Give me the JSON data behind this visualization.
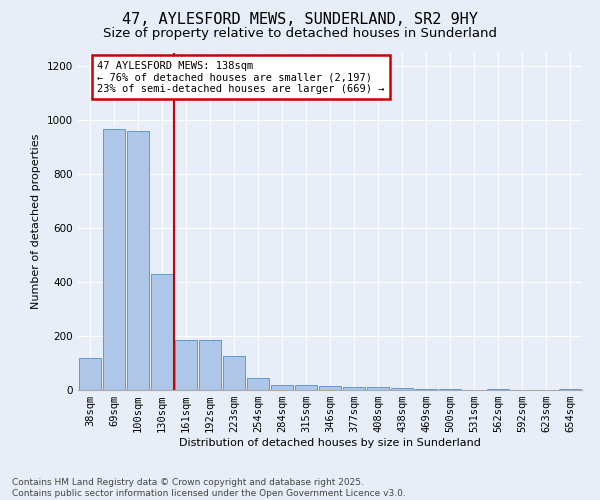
{
  "title_line1": "47, AYLESFORD MEWS, SUNDERLAND, SR2 9HY",
  "title_line2": "Size of property relative to detached houses in Sunderland",
  "xlabel": "Distribution of detached houses by size in Sunderland",
  "ylabel": "Number of detached properties",
  "categories": [
    "38sqm",
    "69sqm",
    "100sqm",
    "130sqm",
    "161sqm",
    "192sqm",
    "223sqm",
    "254sqm",
    "284sqm",
    "315sqm",
    "346sqm",
    "377sqm",
    "408sqm",
    "438sqm",
    "469sqm",
    "500sqm",
    "531sqm",
    "562sqm",
    "592sqm",
    "623sqm",
    "654sqm"
  ],
  "values": [
    120,
    965,
    960,
    430,
    185,
    185,
    125,
    45,
    18,
    18,
    15,
    10,
    10,
    8,
    5,
    5,
    0,
    5,
    0,
    0,
    5
  ],
  "bar_color": "#aec6e8",
  "bar_edge_color": "#5b9bd5",
  "red_line_index": 3,
  "annotation_text": "47 AYLESFORD MEWS: 138sqm\n← 76% of detached houses are smaller (2,197)\n23% of semi-detached houses are larger (669) →",
  "annotation_box_color": "#ffffff",
  "annotation_box_edge": "#cc0000",
  "red_line_color": "#cc0000",
  "background_color": "#e8eef7",
  "plot_bg_color": "#e8eef7",
  "footer_text": "Contains HM Land Registry data © Crown copyright and database right 2025.\nContains public sector information licensed under the Open Government Licence v3.0.",
  "ylim": [
    0,
    1250
  ],
  "yticks": [
    0,
    200,
    400,
    600,
    800,
    1000,
    1200
  ],
  "title_fontsize": 11,
  "subtitle_fontsize": 9.5,
  "axis_label_fontsize": 8,
  "tick_fontsize": 7.5,
  "footer_fontsize": 6.5
}
